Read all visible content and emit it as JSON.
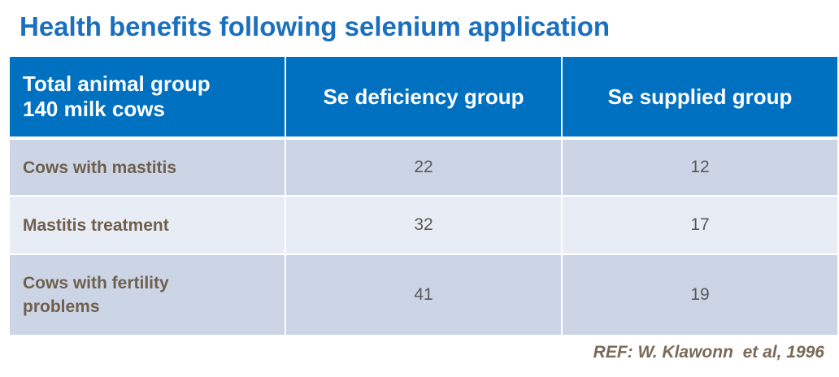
{
  "title": "Health benefits following selenium application",
  "table": {
    "header": [
      [
        "Total animal group",
        "140 milk cows"
      ],
      "Se deficiency group",
      "Se supplied group"
    ],
    "rows": [
      [
        "Cows with mastitis",
        22,
        12
      ],
      [
        "Mastitis treatment",
        32,
        17
      ],
      [
        "Cows with fertility problems",
        41,
        19
      ]
    ]
  },
  "reference": "REF: W. Klawonn  et al, 1996"
}
